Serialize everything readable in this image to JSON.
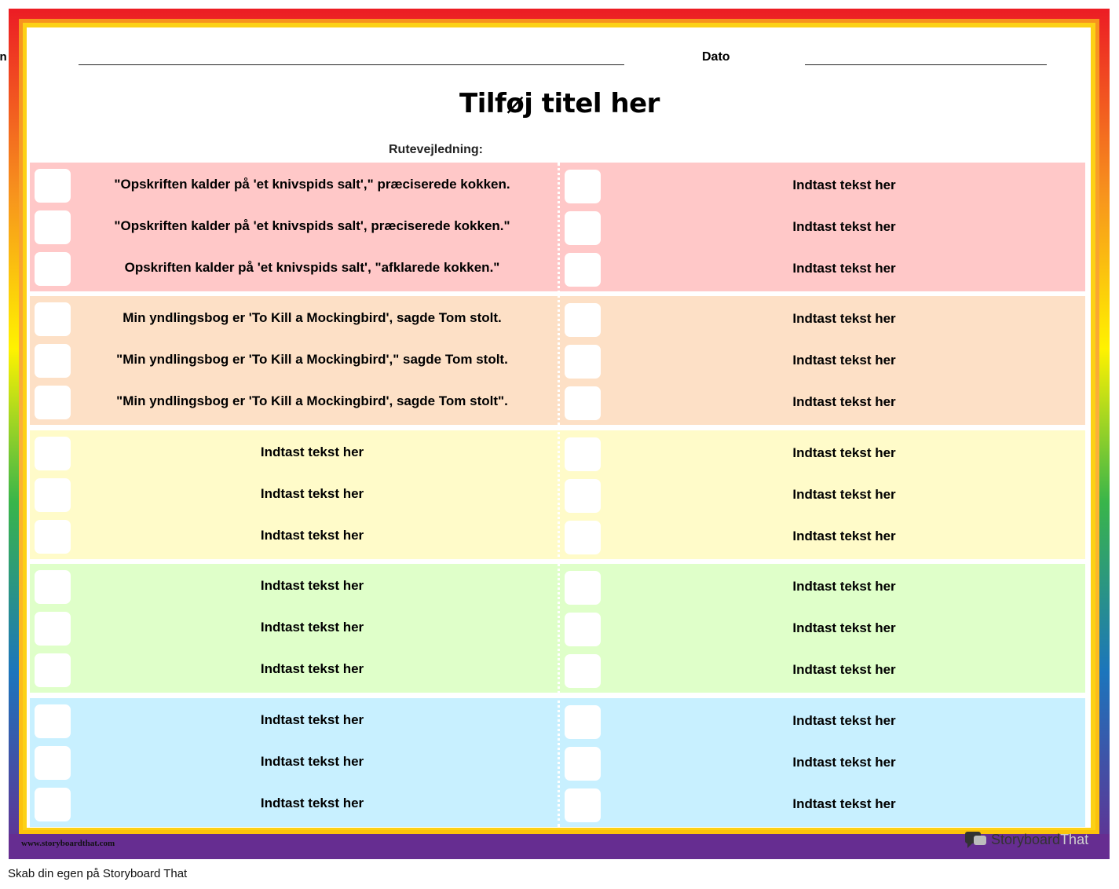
{
  "header": {
    "name_label": "Navn",
    "date_label": "Dato"
  },
  "title": "Tilføj titel her",
  "route_label": "Rutevejledning:",
  "sections": [
    {
      "left": [
        "\"Opskriften kalder på 'et knivspids salt',\" præciserede kokken.",
        "\"Opskriften kalder på 'et knivspids salt', præciserede kokken.\"",
        "Opskriften kalder på 'et knivspids salt', \"afklarede kokken.\""
      ],
      "right": [
        "Indtast tekst her",
        "Indtast tekst her",
        "Indtast tekst her"
      ]
    },
    {
      "left": [
        "Min yndlingsbog er 'To Kill a Mockingbird', sagde Tom stolt.",
        "\"Min yndlingsbog er 'To Kill a Mockingbird',\" sagde Tom stolt.",
        "\"Min yndlingsbog er 'To Kill a Mockingbird', sagde Tom stolt\"."
      ],
      "right": [
        "Indtast tekst her",
        "Indtast tekst her",
        "Indtast tekst her"
      ]
    },
    {
      "left": [
        "Indtast tekst her",
        "Indtast tekst her",
        "Indtast tekst her"
      ],
      "right": [
        "Indtast tekst her",
        "Indtast tekst her",
        "Indtast tekst her"
      ]
    },
    {
      "left": [
        "Indtast tekst her",
        "Indtast tekst her",
        "Indtast tekst her"
      ],
      "right": [
        "Indtast tekst her",
        "Indtast tekst her",
        "Indtast tekst her"
      ]
    },
    {
      "left": [
        "Indtast tekst her",
        "Indtast tekst her",
        "Indtast tekst her"
      ],
      "right": [
        "Indtast tekst her",
        "Indtast tekst her",
        "Indtast tekst her"
      ]
    }
  ],
  "section_colors": [
    "#ffc8c8",
    "#fde0c6",
    "#fffbc9",
    "#dfffc9",
    "#c8f0ff"
  ],
  "footer": {
    "url": "www.storyboardthat.com",
    "logo_part1": "Storyboard",
    "logo_part2": "That",
    "caption": "Skab din egen på Storyboard That"
  }
}
